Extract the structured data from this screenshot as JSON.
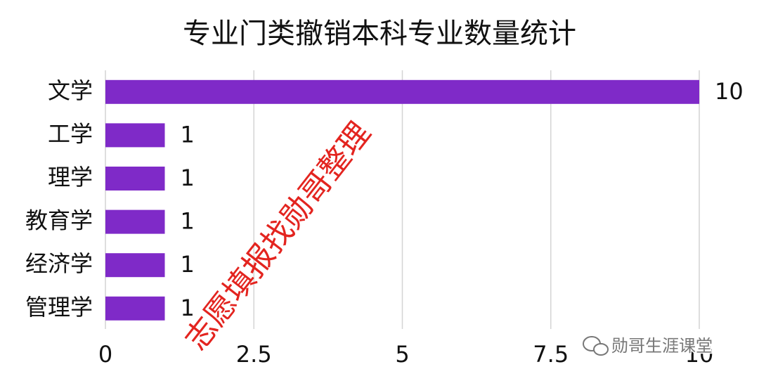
{
  "chart_data": {
    "type": "bar",
    "orientation": "horizontal",
    "title": "专业门类撤销本科专业数量统计",
    "categories": [
      "文学",
      "工学",
      "理学",
      "教育学",
      "经济学",
      "管理学"
    ],
    "values": [
      10,
      1,
      1,
      1,
      1,
      1
    ],
    "color": "#7f2ac8",
    "xlim": [
      0,
      10
    ],
    "xticks": [
      0,
      2.5,
      5,
      7.5,
      10
    ],
    "grid": true,
    "watermark": "志愿填报找勋哥整理",
    "source": "勋哥生涯课堂"
  }
}
